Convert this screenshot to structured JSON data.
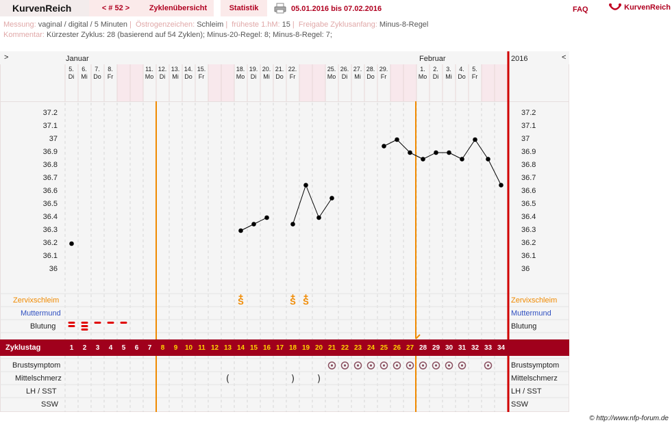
{
  "header": {
    "app_name": "KurvenReich",
    "cycle_nav": "< # 52 >",
    "tab_overview": "Zyklenübersicht",
    "tab_stats": "Statistik",
    "date_range": "05.01.2016 bis 07.02.2016",
    "faq": "FAQ",
    "brand_label": "KurvenReich"
  },
  "info": {
    "messung_label": "Messung:",
    "messung_value": "vaginal / digital / 5 Minuten",
    "oestrogen_label": "Östrogenzeichen:",
    "oestrogen_value": "Schleim",
    "fhm_label": "früheste 1.hM:",
    "fhm_value": "15",
    "freigabe_label": "Freigabe Zyklusanfang:",
    "freigabe_value": "Minus-8-Regel",
    "kommentar_label": "Kommentar:",
    "kommentar_value": "Kürzester Zyklus: 28 (basierend auf 54 Zyklen);  Minus-20-Regel: 8; Minus-8-Regel: 7;"
  },
  "chart_header": {
    "left_arrow": ">",
    "right_arrow": "<",
    "month1": "Januar",
    "month2": "Februar",
    "year": "2016"
  },
  "days": [
    {
      "d": "5.",
      "w": "Di"
    },
    {
      "d": "6.",
      "w": "Mi"
    },
    {
      "d": "7.",
      "w": "Do"
    },
    {
      "d": "8.",
      "w": "Fr"
    },
    {
      "d": "9.",
      "w": "Sa"
    },
    {
      "d": "10.",
      "w": "So"
    },
    {
      "d": "11.",
      "w": "Mo"
    },
    {
      "d": "12.",
      "w": "Di"
    },
    {
      "d": "13.",
      "w": "Mi"
    },
    {
      "d": "14.",
      "w": "Do"
    },
    {
      "d": "15.",
      "w": "Fr"
    },
    {
      "d": "16.",
      "w": "Sa"
    },
    {
      "d": "17.",
      "w": "So"
    },
    {
      "d": "18.",
      "w": "Mo"
    },
    {
      "d": "19.",
      "w": "Di"
    },
    {
      "d": "20.",
      "w": "Mi"
    },
    {
      "d": "21.",
      "w": "Do"
    },
    {
      "d": "22.",
      "w": "Fr"
    },
    {
      "d": "23.",
      "w": "Sa"
    },
    {
      "d": "24.",
      "w": "So"
    },
    {
      "d": "25.",
      "w": "Mo"
    },
    {
      "d": "26.",
      "w": "Di"
    },
    {
      "d": "27.",
      "w": "Mi"
    },
    {
      "d": "28.",
      "w": "Do"
    },
    {
      "d": "29.",
      "w": "Fr"
    },
    {
      "d": "30.",
      "w": "Sa"
    },
    {
      "d": "31.",
      "w": "So"
    },
    {
      "d": "1.",
      "w": "Mo"
    },
    {
      "d": "2.",
      "w": "Di"
    },
    {
      "d": "3.",
      "w": "Mi"
    },
    {
      "d": "4.",
      "w": "Do"
    },
    {
      "d": "5.",
      "w": "Fr"
    },
    {
      "d": "6.",
      "w": "Sa"
    },
    {
      "d": "7.",
      "w": "So"
    }
  ],
  "rows": {
    "zervix": "Zervixschleim",
    "muttermund": "Muttermund",
    "blutung": "Blutung",
    "zyklustag": "Zyklustag",
    "brust": "Brustsymptom",
    "mittelschmerz": "Mittelschmerz",
    "lh": "LH / SST",
    "ssw": "SSW"
  },
  "chart_data": {
    "type": "line",
    "title": "",
    "ylim": [
      35.9,
      37.3
    ],
    "y_ticks": [
      "37.2",
      "37.1",
      "37",
      "36.9",
      "36.8",
      "36.7",
      "36.6",
      "36.5",
      "36.4",
      "36.3",
      "36.2",
      "36.1",
      "36"
    ],
    "cycle_days": [
      1,
      2,
      3,
      4,
      5,
      6,
      7,
      8,
      9,
      10,
      11,
      12,
      13,
      14,
      15,
      16,
      17,
      18,
      19,
      20,
      21,
      22,
      23,
      24,
      25,
      26,
      27,
      28,
      29,
      30,
      31,
      32,
      33,
      34
    ],
    "temperatures": [
      36.2,
      null,
      null,
      null,
      null,
      null,
      null,
      null,
      null,
      null,
      null,
      null,
      null,
      36.3,
      36.35,
      36.4,
      null,
      36.35,
      36.65,
      36.4,
      36.55,
      null,
      null,
      null,
      36.95,
      37.0,
      36.9,
      36.85,
      36.9,
      36.9,
      36.85,
      37.0,
      36.85,
      36.65
    ],
    "cervix_mucus_days": [
      14,
      18,
      19
    ],
    "cervix_mucus_symbol": "S",
    "bleeding": [
      2,
      3,
      1,
      1,
      1,
      0,
      0
    ],
    "breast_symptom_days": [
      21,
      22,
      23,
      24,
      25,
      26,
      27,
      28,
      29,
      30,
      31,
      33
    ],
    "mittelschmerz": [
      {
        "day": 13,
        "glyph": "("
      },
      {
        "day": 18,
        "glyph": ")"
      },
      {
        "day": 20,
        "glyph": ")"
      }
    ],
    "lines": {
      "lower_limit_after_day": 7,
      "temp_shift_after_day": 27,
      "cycle_end_after_day": 34
    },
    "weekend_days": [
      5,
      6,
      12,
      13,
      19,
      20,
      26,
      27,
      33,
      34
    ]
  },
  "footer": "© http://www.nfp-forum.de",
  "colors": {
    "accent": "#a00020",
    "orange": "#f08a00",
    "blue": "#3050c0",
    "bleed": "#e00000",
    "weekend": "#f8e8ec"
  }
}
